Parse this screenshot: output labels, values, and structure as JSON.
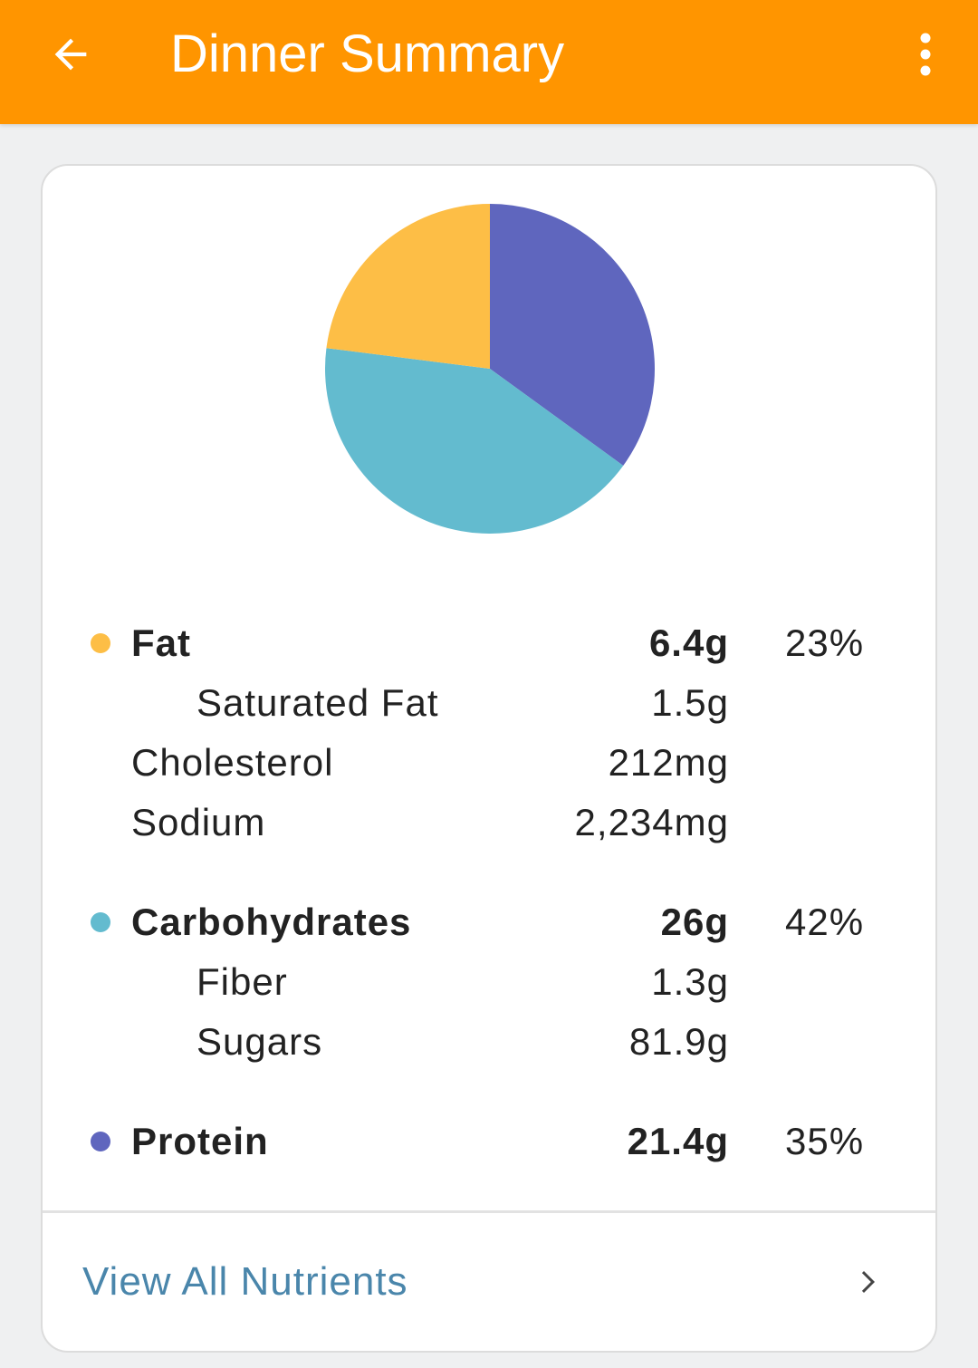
{
  "header": {
    "title": "Dinner Summary",
    "back_icon": "arrow-back-icon",
    "menu_icon": "more-vert-icon",
    "color": "#ff9500"
  },
  "chart_data": {
    "type": "pie",
    "slices": [
      {
        "name": "Fat",
        "value": 23,
        "color": "#fdbe46"
      },
      {
        "name": "Carbohydrates",
        "value": 42,
        "color": "#63bbcf"
      },
      {
        "name": "Protein",
        "value": 35,
        "color": "#5f66be"
      }
    ]
  },
  "nutrients": {
    "fat": {
      "label": "Fat",
      "amount": "6.4g",
      "percent": "23%",
      "color": "#fdbe46"
    },
    "saturated_fat": {
      "label": "Saturated Fat",
      "amount": "1.5g"
    },
    "cholesterol": {
      "label": "Cholesterol",
      "amount": "212mg"
    },
    "sodium": {
      "label": "Sodium",
      "amount": "2,234mg"
    },
    "carbohydrates": {
      "label": "Carbohydrates",
      "amount": "26g",
      "percent": "42%",
      "color": "#63bbcf"
    },
    "fiber": {
      "label": "Fiber",
      "amount": "1.3g"
    },
    "sugars": {
      "label": "Sugars",
      "amount": "81.9g"
    },
    "protein": {
      "label": "Protein",
      "amount": "21.4g",
      "percent": "35%",
      "color": "#5f66be"
    }
  },
  "footer": {
    "label": "View All Nutrients",
    "icon": "chevron-right-icon"
  }
}
